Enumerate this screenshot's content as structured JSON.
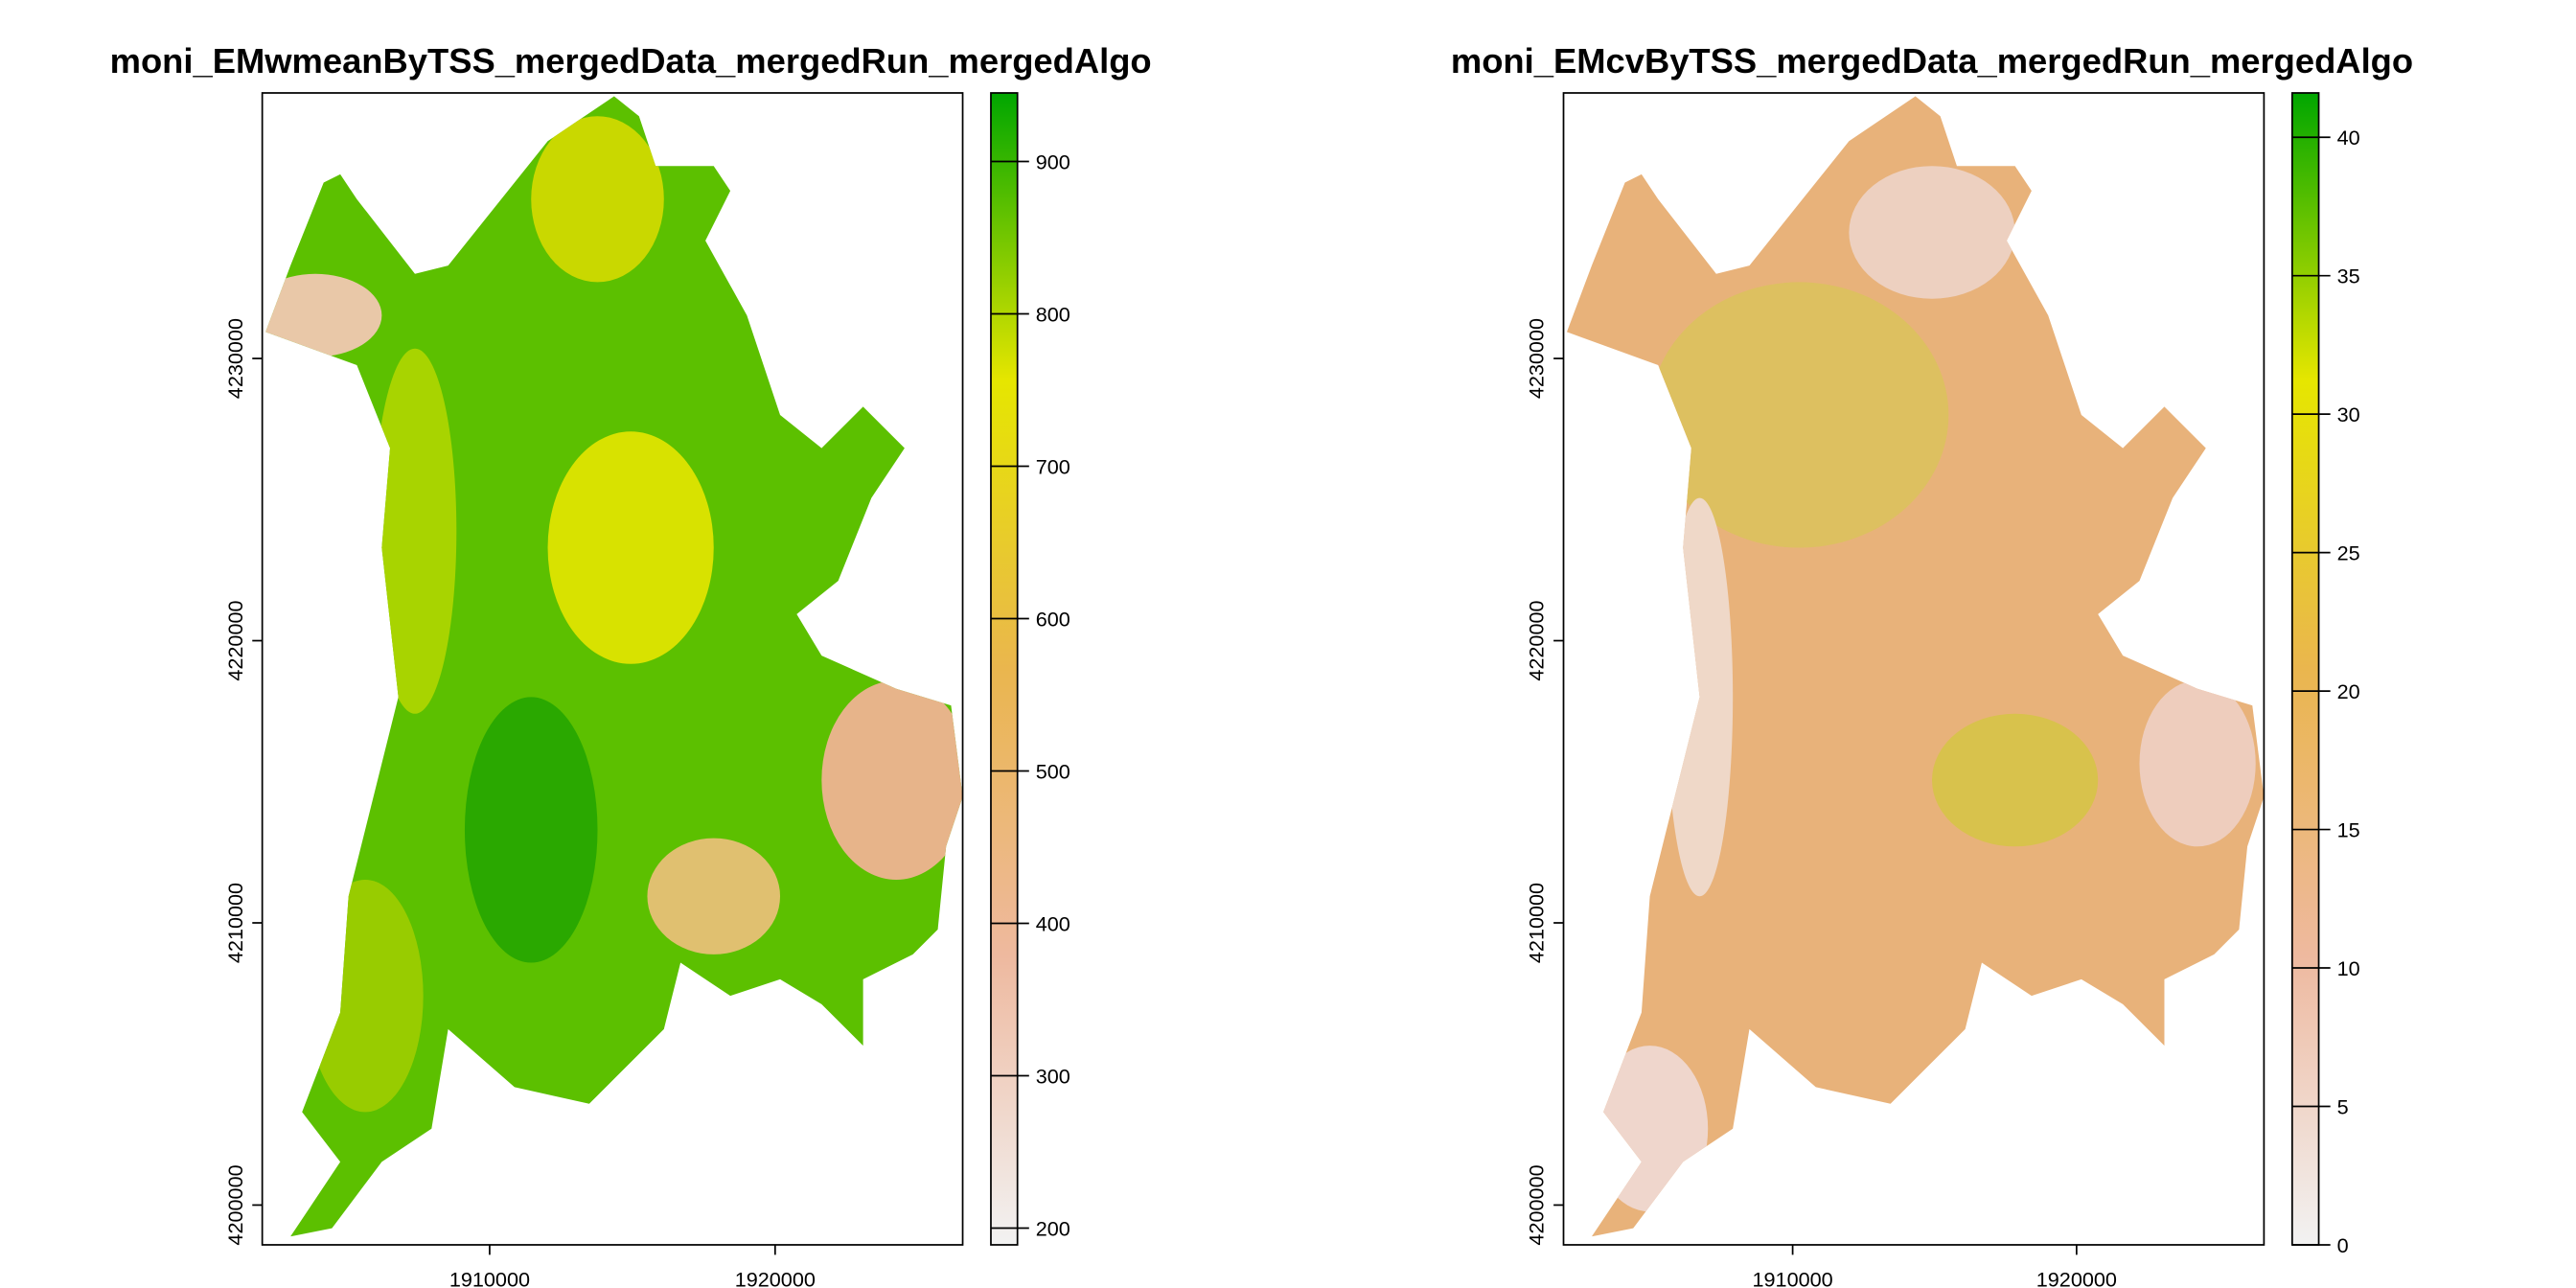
{
  "chart_data": [
    {
      "type": "raster",
      "title": "moni_EMwmeanByTSS_mergedData_mergedRun_mergedAlgo",
      "xlim": [
        1902035,
        1926570
      ],
      "xticks": [
        1910000,
        1920000
      ],
      "ylim": [
        4198590,
        4239410
      ],
      "yticks": [
        4200000,
        4210000,
        4220000,
        4230000
      ],
      "colorbar": {
        "lim": [
          189,
          945
        ],
        "ticks": [
          200,
          300,
          400,
          500,
          600,
          700,
          800,
          900
        ],
        "colors": [
          "#F2F2F2",
          "#EEB99F",
          "#EAB64E",
          "#E6E600",
          "#00A600"
        ]
      }
    },
    {
      "type": "raster",
      "title": "moni_EMcvByTSS_mergedData_mergedRun_mergedAlgo",
      "xlim": [
        1901930,
        1926600
      ],
      "xticks": [
        1910000,
        1920000
      ],
      "ylim": [
        4198590,
        4239410
      ],
      "yticks": [
        4200000,
        4210000,
        4220000,
        4230000
      ],
      "colorbar": {
        "lim": [
          0,
          41.6
        ],
        "ticks": [
          0,
          5,
          10,
          15,
          20,
          25,
          30,
          35,
          40
        ],
        "colors": [
          "#F2F2F2",
          "#EEB99F",
          "#EAB64E",
          "#E6E600",
          "#00A600"
        ]
      }
    }
  ]
}
